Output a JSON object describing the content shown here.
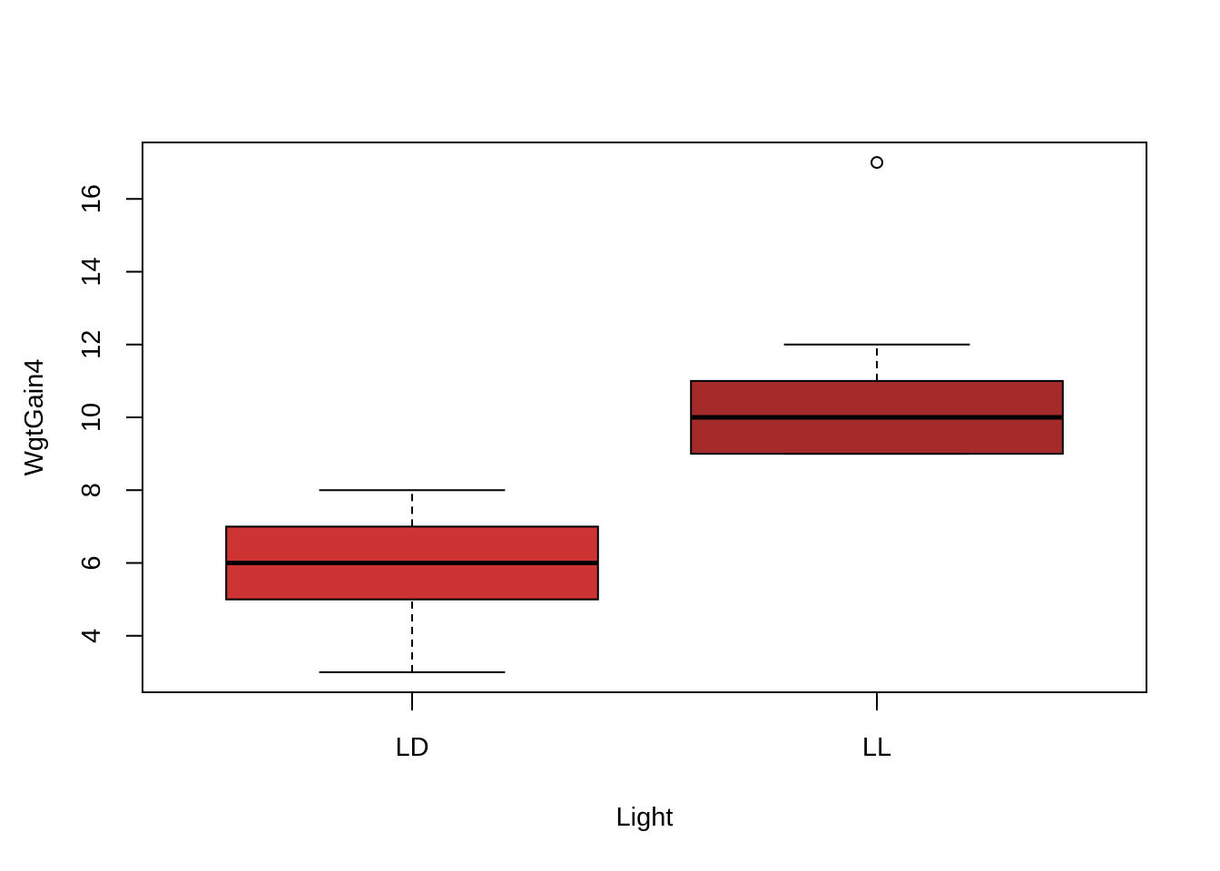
{
  "chart_data": {
    "type": "boxplot",
    "title": "",
    "xlabel": "Light",
    "ylabel": "WgtGain4",
    "ylim": [
      2.45,
      17.55
    ],
    "yticks": [
      4,
      6,
      8,
      10,
      12,
      14,
      16
    ],
    "ytick_labels": [
      "4",
      "6",
      "8",
      "10",
      "12",
      "14",
      "16"
    ],
    "grid": false,
    "categories": [
      "LD",
      "LL"
    ],
    "boxes": [
      {
        "category": "LD",
        "whisker_low": 3,
        "q1": 5,
        "median": 6,
        "q3": 7,
        "whisker_high": 8,
        "outliers": [],
        "color": "#cd3333"
      },
      {
        "category": "LL",
        "whisker_low": 9,
        "q1": 9,
        "median": 10,
        "q3": 11,
        "whisker_high": 12,
        "outliers": [
          17
        ],
        "color": "#a52a2a"
      }
    ]
  }
}
